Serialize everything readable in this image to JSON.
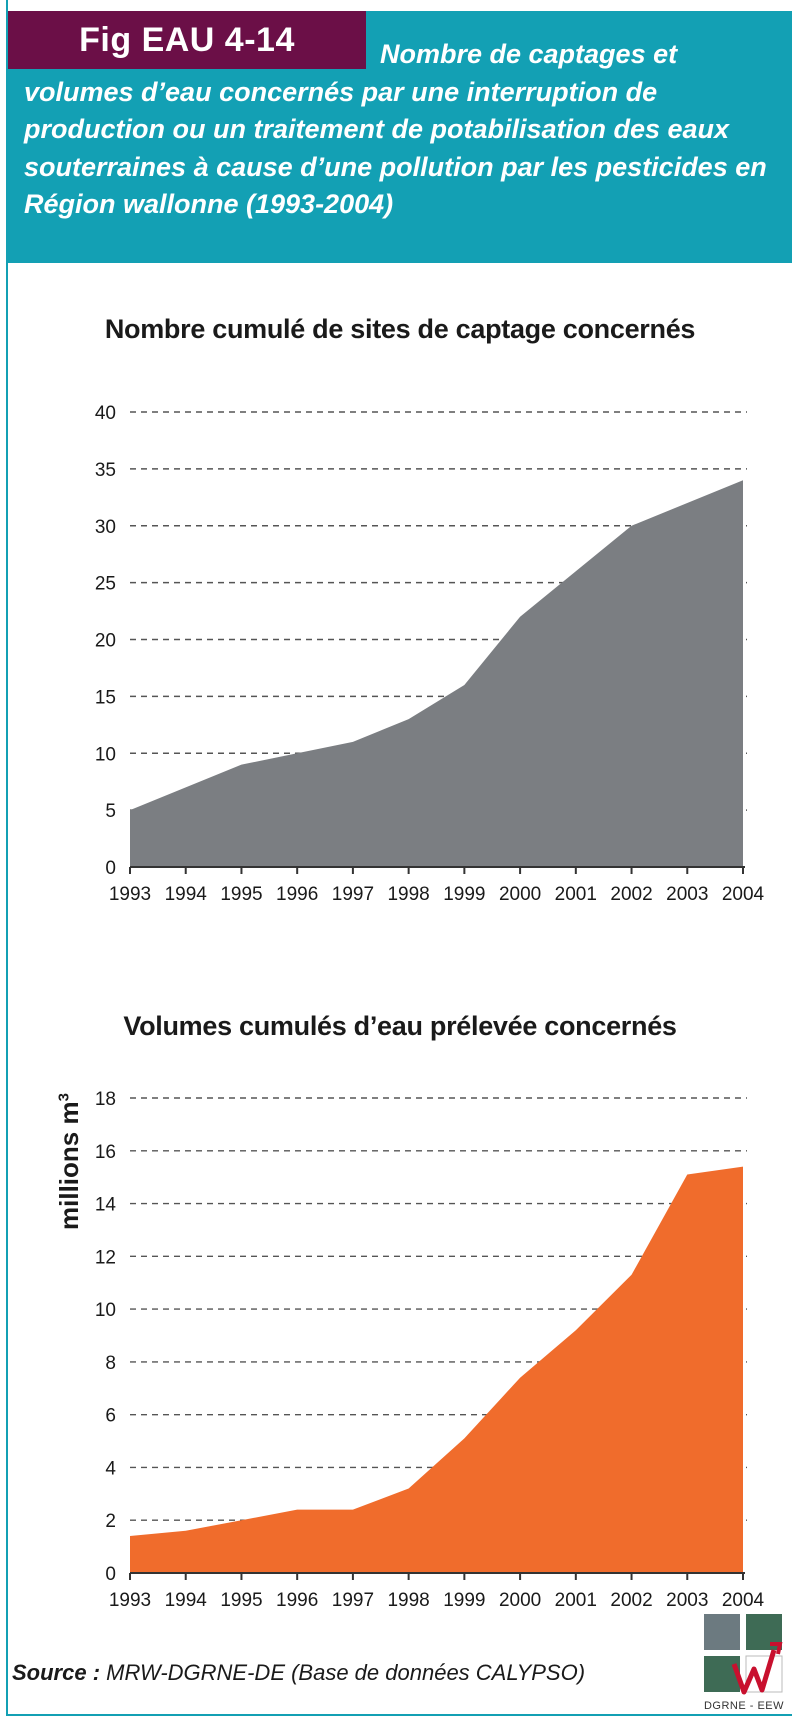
{
  "figure": {
    "tag": "Fig EAU 4-14",
    "title": "Nombre de captages et volumes d’eau concernés par une interruption de production ou un traitement de potabilisation des eaux souterraines à cause d’une pollution par les pesticides en Région wallonne (1993-2004)",
    "source_label": "Source :",
    "source_text": " MRW-DGRNE-DE (Base de données CALYPSO)",
    "logo_text": "DGRNE - EEW"
  },
  "colors": {
    "header_bg": "#13a0b4",
    "tag_bg": "#6b0f47",
    "series1": "#7b7e82",
    "series2": "#f06c2c"
  },
  "chart_data": [
    {
      "type": "area",
      "title": "Nombre cumulé de sites de captage concernés",
      "xlabel": "",
      "ylabel": "",
      "x": [
        "1993",
        "1994",
        "1995",
        "1996",
        "1997",
        "1998",
        "1999",
        "2000",
        "2001",
        "2002",
        "2003",
        "2004"
      ],
      "series": [
        {
          "values": [
            5,
            7,
            9,
            10,
            11,
            13,
            16,
            22,
            26,
            30,
            32,
            34
          ]
        }
      ],
      "ylim": [
        0,
        40
      ],
      "yticks": [
        0,
        5,
        10,
        15,
        20,
        25,
        30,
        35,
        40
      ],
      "grid": true
    },
    {
      "type": "area",
      "title": "Volumes cumulés d’eau prélevée concernés",
      "xlabel": "",
      "ylabel": "millions m",
      "ylabel_sup": "3",
      "x": [
        "1993",
        "1994",
        "1995",
        "1996",
        "1997",
        "1998",
        "1999",
        "2000",
        "2001",
        "2002",
        "2003",
        "2004"
      ],
      "series": [
        {
          "values": [
            1.4,
            1.6,
            2.0,
            2.4,
            2.4,
            3.2,
            5.1,
            7.4,
            9.2,
            11.3,
            15.1,
            15.4
          ]
        }
      ],
      "ylim": [
        0,
        18
      ],
      "yticks": [
        0,
        2,
        4,
        6,
        8,
        10,
        12,
        14,
        16,
        18
      ],
      "grid": true
    }
  ]
}
